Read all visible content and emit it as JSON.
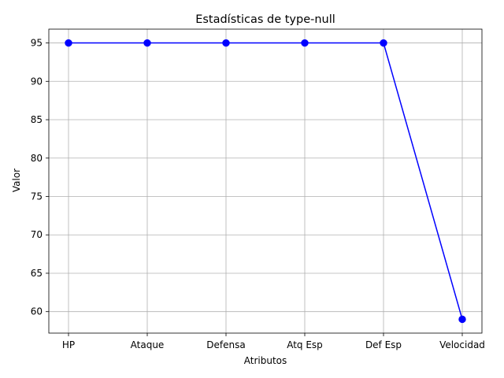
{
  "chart_data": {
    "type": "line",
    "title": "Estadísticas de type-null",
    "xlabel": "Atributos",
    "ylabel": "Valor",
    "categories": [
      "HP",
      "Ataque",
      "Defensa",
      "Atq Esp",
      "Def Esp",
      "Velocidad"
    ],
    "series": [
      {
        "values": [
          95,
          95,
          95,
          95,
          95,
          59
        ],
        "color": "#0000ff",
        "marker": "circle"
      }
    ],
    "ylim": [
      57.2,
      96.8
    ],
    "yticks": [
      60,
      65,
      70,
      75,
      80,
      85,
      90,
      95
    ],
    "grid": true,
    "legend": "none"
  }
}
